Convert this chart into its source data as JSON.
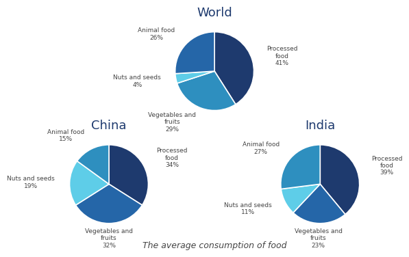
{
  "subtitle": "The average consumption of food",
  "charts": [
    {
      "label": "World",
      "slices": [
        41,
        29,
        4,
        26
      ],
      "slice_labels": [
        "Processed\nfood\n41%",
        "Vegetables and\nfruits\n29%",
        "Nuts and seeds\n4%",
        "Animal food\n26%"
      ],
      "colors": [
        "#1e3a6e",
        "#2e8fbf",
        "#5ecde8",
        "#2566a8"
      ],
      "start_angle": 90,
      "label_distances": [
        1.35,
        1.35,
        1.35,
        1.35
      ]
    },
    {
      "label": "China",
      "slices": [
        34,
        32,
        19,
        15
      ],
      "slice_labels": [
        "Processed\nfood\n34%",
        "Vegetables and\nfruits\n32%",
        "Nuts and seeds\n19%",
        "Animal food\n15%"
      ],
      "colors": [
        "#1e3a6e",
        "#2566a8",
        "#5ecde8",
        "#2e8fbf"
      ],
      "start_angle": 90,
      "label_distances": [
        1.35,
        1.35,
        1.35,
        1.35
      ]
    },
    {
      "label": "India",
      "slices": [
        39,
        23,
        11,
        27
      ],
      "slice_labels": [
        "Processed\nfood\n39%",
        "Vegetables and\nfruits\n23%",
        "Nuts and seeds\n11%",
        "Animal food\n27%"
      ],
      "colors": [
        "#1e3a6e",
        "#2566a8",
        "#5ecde8",
        "#2e8fbf"
      ],
      "start_angle": 90,
      "label_distances": [
        1.35,
        1.35,
        1.35,
        1.35
      ]
    }
  ],
  "font_color": "#444444",
  "title_font_color": "#1e3a6e",
  "label_fontsize": 6.5,
  "chart_title_fontsize": 13
}
